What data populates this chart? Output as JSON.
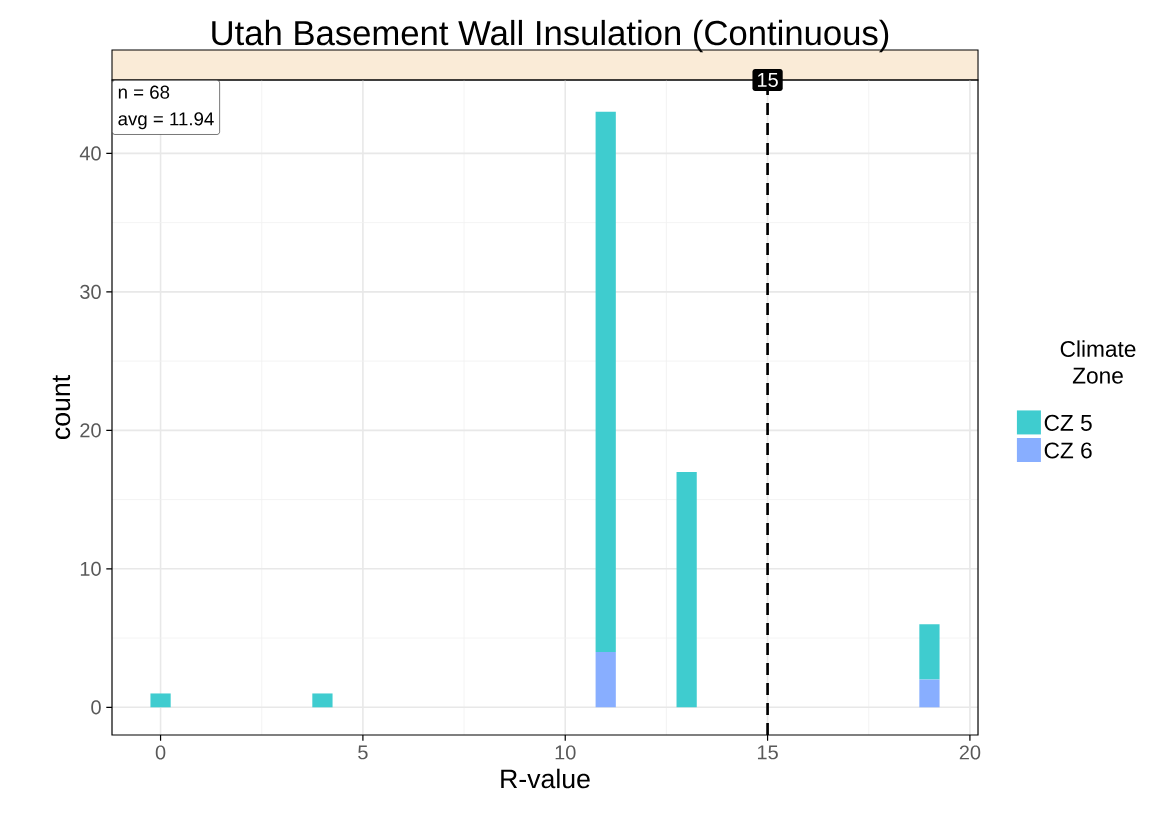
{
  "chart_data": {
    "type": "bar",
    "stacked": true,
    "title": "Utah Basement Wall Insulation (Continuous)",
    "xlabel": "R-value",
    "ylabel": "count",
    "legend_title": "Climate Zone",
    "legend": "right",
    "x": [
      0,
      4,
      11,
      13,
      19
    ],
    "series": [
      {
        "name": "CZ 6",
        "color": "#88aeff",
        "values": [
          0,
          0,
          4,
          0,
          2
        ]
      },
      {
        "name": "CZ 5",
        "color": "#3fcccf",
        "values": [
          1,
          1,
          39,
          17,
          4
        ]
      }
    ],
    "xlim": [
      -1.2,
      20.2
    ],
    "ylim": [
      -2,
      45.3
    ],
    "xticks": [
      0,
      5,
      10,
      15,
      20
    ],
    "yticks": [
      0,
      10,
      20,
      30,
      40
    ],
    "grid": true,
    "ref_lines": [
      {
        "axis": "x",
        "value": 15,
        "label": "15",
        "color": "#000000",
        "line_style": "dashed"
      }
    ],
    "annotations": [
      "n = 68",
      "avg = 11.94"
    ]
  }
}
